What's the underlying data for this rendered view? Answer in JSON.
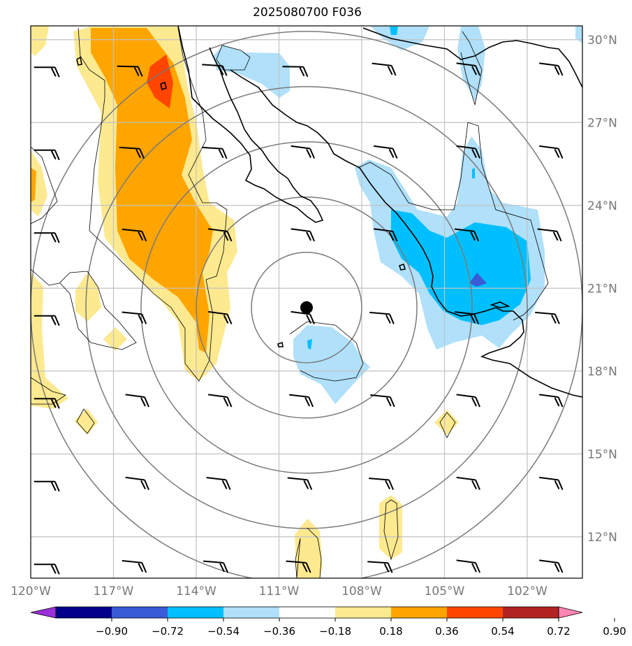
{
  "title": "2025080700 F036",
  "map": {
    "lon_range": [
      -120,
      -100
    ],
    "lat_range": [
      10.5,
      30.5
    ],
    "lon_ticks": [
      "120°W",
      "117°W",
      "114°W",
      "111°W",
      "108°W",
      "105°W",
      "102°W"
    ],
    "lat_ticks": [
      "30°N",
      "27°N",
      "24°N",
      "21°N",
      "18°N",
      "15°N",
      "12°N"
    ],
    "center_marker": {
      "lon": -110.0,
      "lat": 20.3
    },
    "range_rings_deg": [
      2,
      4,
      6,
      8,
      10
    ],
    "grid": true,
    "coastline_color": "#000000"
  },
  "colorbar": {
    "ticks": [
      "−0.90",
      "−0.72",
      "−0.54",
      "−0.36",
      "−0.18",
      "0.18",
      "0.36",
      "0.54",
      "0.72",
      "0.90"
    ],
    "colors": [
      "#9b30d9",
      "#00008b",
      "#3a5bd6",
      "#00bfff",
      "#b0e0fa",
      "#ffffff",
      "#fde98f",
      "#ffa500",
      "#ff4500",
      "#b22222",
      "#ff85b4"
    ],
    "extend": "both"
  }
}
